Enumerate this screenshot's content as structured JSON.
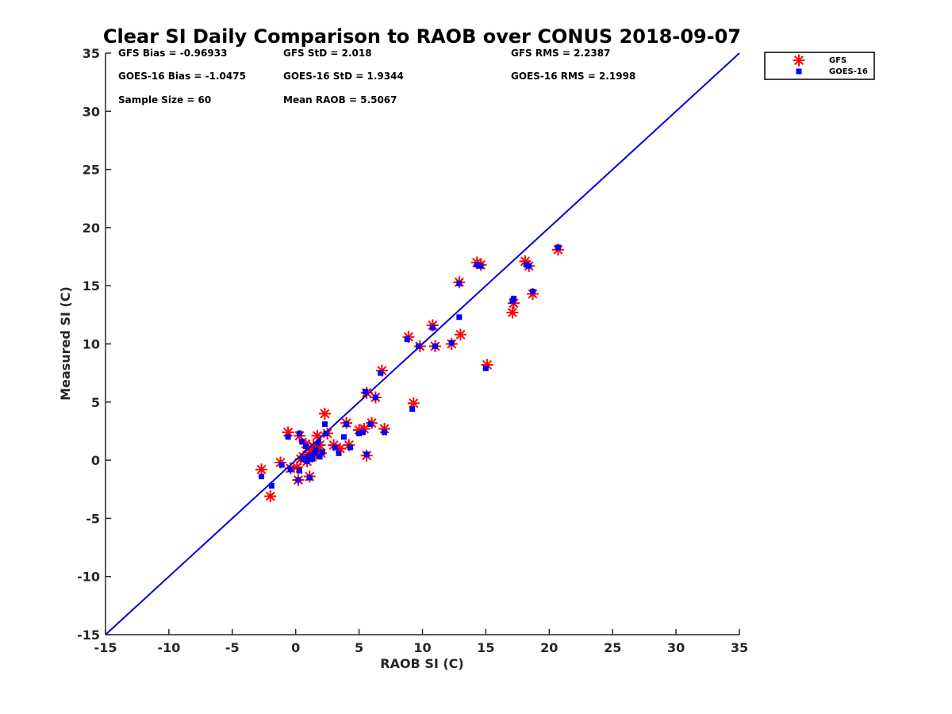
{
  "chart_data": {
    "type": "scatter",
    "title": "Clear SI Daily Comparison to RAOB over CONUS 2018-09-07",
    "xlabel": "RAOB SI (C)",
    "ylabel": "Measured SI (C)",
    "xlim": [
      -15,
      35
    ],
    "ylim": [
      -15,
      35
    ],
    "xticks": [
      "-15",
      "-10",
      "-5",
      "0",
      "5",
      "10",
      "15",
      "20",
      "25",
      "30",
      "35"
    ],
    "yticks": [
      "-15",
      "-10",
      "-5",
      "0",
      "5",
      "10",
      "15",
      "20",
      "25",
      "30",
      "35"
    ],
    "xtick_values": [
      -15,
      -10,
      -5,
      0,
      5,
      10,
      15,
      20,
      25,
      30,
      35
    ],
    "ytick_values": [
      -15,
      -10,
      -5,
      0,
      5,
      10,
      15,
      20,
      25,
      30,
      35
    ],
    "grid": false,
    "legend_position": "outside top-right",
    "reference_line": {
      "from": [
        -15,
        -15
      ],
      "to": [
        35,
        35
      ],
      "color": "#0000dd"
    },
    "stats": [
      "GFS Bias = -0.96933",
      "GFS StD = 2.018",
      "GFS RMS = 2.2387",
      "GOES-16 Bias = -1.0475",
      "GOES-16 StD = 1.9344",
      "GOES-16 RMS = 2.1998",
      "Sample Size = 60",
      "Mean RAOB = 5.5067"
    ],
    "series": [
      {
        "name": "GFS",
        "marker": "asterisk",
        "color": "#ff0000",
        "points": [
          [
            -2.7,
            -0.8
          ],
          [
            -2.0,
            -3.1
          ],
          [
            -1.2,
            -0.2
          ],
          [
            -0.6,
            2.4
          ],
          [
            -0.4,
            -0.7
          ],
          [
            0.1,
            -0.6
          ],
          [
            0.2,
            -1.7
          ],
          [
            0.3,
            2.1
          ],
          [
            0.4,
            0.1
          ],
          [
            0.6,
            0.3
          ],
          [
            0.8,
            1.4
          ],
          [
            0.9,
            -0.1
          ],
          [
            1.0,
            0.5
          ],
          [
            1.1,
            -1.4
          ],
          [
            1.2,
            0.9
          ],
          [
            1.3,
            0.3
          ],
          [
            1.4,
            1.2
          ],
          [
            1.6,
            0.6
          ],
          [
            1.7,
            2.1
          ],
          [
            1.9,
            1.3
          ],
          [
            2.0,
            0.6
          ],
          [
            2.3,
            4.0
          ],
          [
            2.5,
            2.3
          ],
          [
            3.0,
            1.3
          ],
          [
            3.5,
            1.0
          ],
          [
            4.0,
            3.2
          ],
          [
            4.2,
            1.3
          ],
          [
            5.0,
            2.6
          ],
          [
            5.4,
            2.7
          ],
          [
            5.6,
            5.8
          ],
          [
            5.6,
            0.4
          ],
          [
            6.0,
            3.2
          ],
          [
            6.3,
            5.4
          ],
          [
            6.8,
            7.7
          ],
          [
            7.0,
            2.7
          ],
          [
            8.9,
            10.6
          ],
          [
            9.3,
            4.9
          ],
          [
            9.8,
            9.8
          ],
          [
            10.8,
            11.6
          ],
          [
            11.0,
            9.8
          ],
          [
            12.3,
            10.0
          ],
          [
            12.9,
            15.3
          ],
          [
            13.0,
            10.8
          ],
          [
            14.3,
            17.0
          ],
          [
            14.6,
            16.8
          ],
          [
            15.1,
            8.2
          ],
          [
            17.1,
            12.7
          ],
          [
            17.2,
            13.5
          ],
          [
            18.1,
            17.1
          ],
          [
            18.4,
            16.7
          ],
          [
            18.7,
            14.3
          ],
          [
            20.7,
            18.1
          ]
        ]
      },
      {
        "name": "GOES-16",
        "marker": "square",
        "color": "#0000ff",
        "points": [
          [
            -2.7,
            -1.4
          ],
          [
            -1.9,
            -2.2
          ],
          [
            -1.1,
            -0.4
          ],
          [
            -0.6,
            2.0
          ],
          [
            -0.4,
            -0.8
          ],
          [
            0.2,
            -1.7
          ],
          [
            0.3,
            -0.9
          ],
          [
            0.3,
            2.3
          ],
          [
            0.5,
            1.6
          ],
          [
            0.6,
            0.1
          ],
          [
            0.8,
            1.2
          ],
          [
            0.9,
            -0.1
          ],
          [
            1.0,
            0.3
          ],
          [
            1.1,
            -1.5
          ],
          [
            1.2,
            0.4
          ],
          [
            1.3,
            0.1
          ],
          [
            1.5,
            0.6
          ],
          [
            1.6,
            0.9
          ],
          [
            1.8,
            1.5
          ],
          [
            1.9,
            0.3
          ],
          [
            2.1,
            0.7
          ],
          [
            2.3,
            3.1
          ],
          [
            2.4,
            2.3
          ],
          [
            3.1,
            1.1
          ],
          [
            3.4,
            0.6
          ],
          [
            3.8,
            2.0
          ],
          [
            4.0,
            3.1
          ],
          [
            4.3,
            1.1
          ],
          [
            5.0,
            2.3
          ],
          [
            5.3,
            2.4
          ],
          [
            5.5,
            5.9
          ],
          [
            5.6,
            0.5
          ],
          [
            5.9,
            3.1
          ],
          [
            6.3,
            5.4
          ],
          [
            6.7,
            7.5
          ],
          [
            7.0,
            2.4
          ],
          [
            8.8,
            10.4
          ],
          [
            9.2,
            4.4
          ],
          [
            9.7,
            9.8
          ],
          [
            10.8,
            11.4
          ],
          [
            11.0,
            9.8
          ],
          [
            12.3,
            10.1
          ],
          [
            12.9,
            12.3
          ],
          [
            12.9,
            15.2
          ],
          [
            14.3,
            16.8
          ],
          [
            14.6,
            16.7
          ],
          [
            15.0,
            7.9
          ],
          [
            17.1,
            13.7
          ],
          [
            17.2,
            13.9
          ],
          [
            18.2,
            16.8
          ],
          [
            18.4,
            16.7
          ],
          [
            18.7,
            14.5
          ],
          [
            20.7,
            18.3
          ]
        ]
      }
    ]
  }
}
